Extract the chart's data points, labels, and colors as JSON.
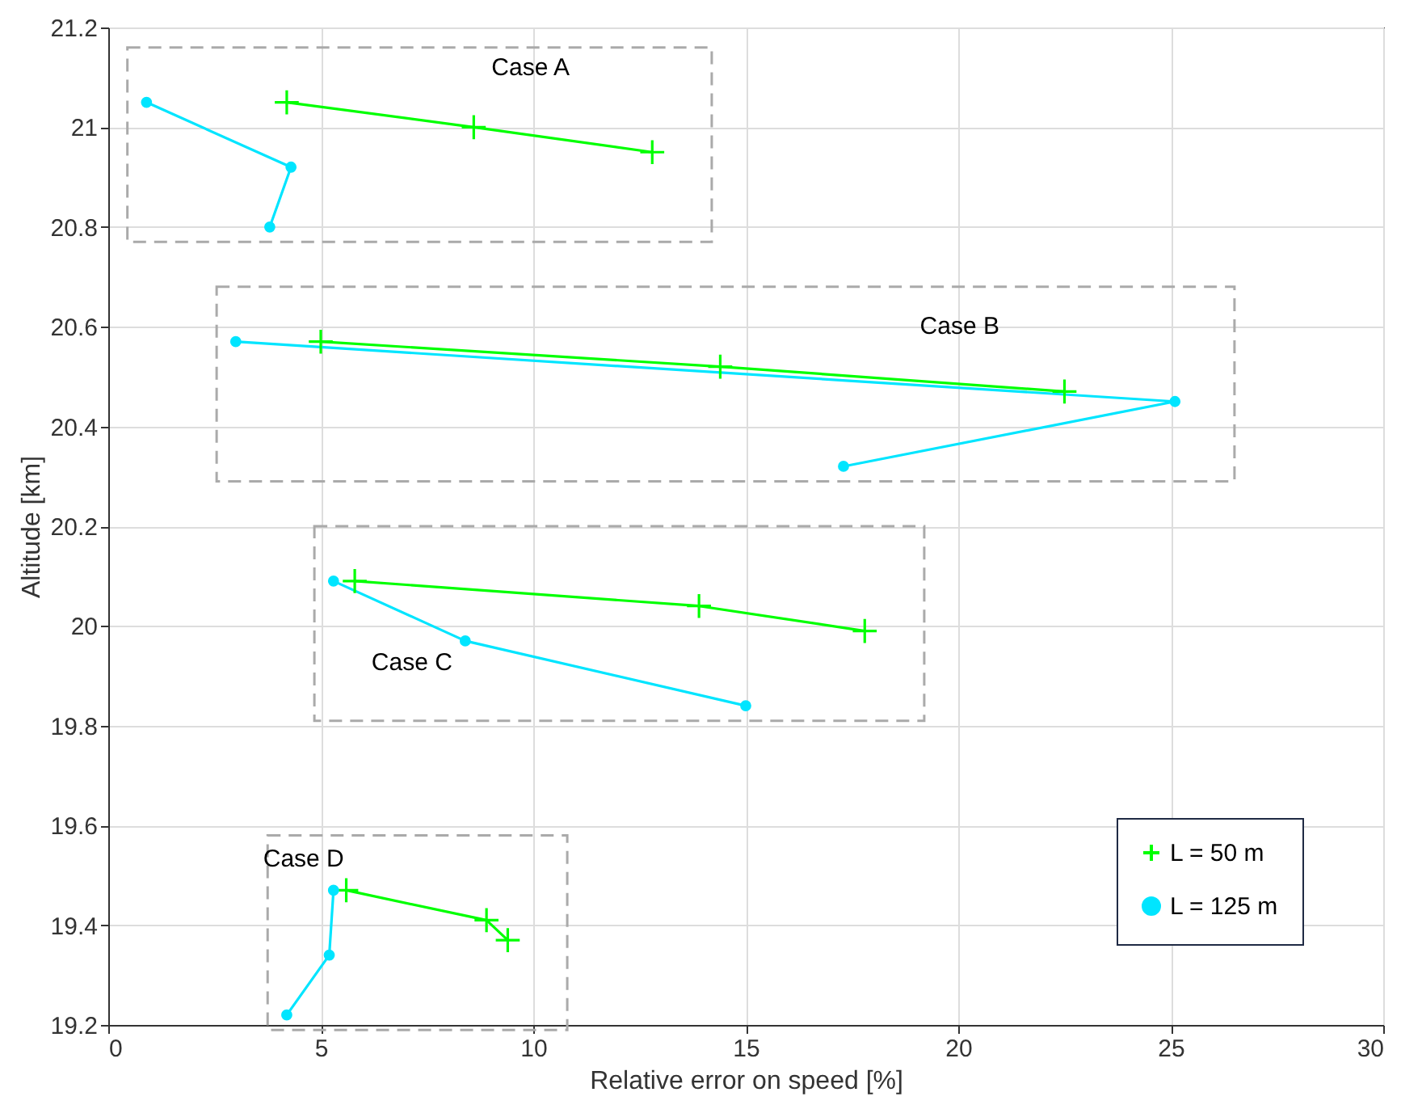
{
  "chart_data": {
    "type": "line",
    "xlabel": "Relative error on speed [%]",
    "ylabel": "Altitude [km]",
    "xlim": [
      0,
      30
    ],
    "xticks": [
      0,
      5,
      10,
      15,
      20,
      25,
      30
    ],
    "ylim": [
      19.2,
      21.2
    ],
    "yticks": [
      19.2,
      19.4,
      19.6,
      19.8,
      20,
      20.2,
      20.4,
      20.6,
      20.8,
      21,
      21.2
    ],
    "grid": true,
    "legend": "bottom right",
    "series": [
      {
        "name": "L = 50 m",
        "color": "#00ff00",
        "marker": "cross",
        "x": [
          4.2,
          8.6,
          12.8,
          null,
          5.0,
          14.4,
          22.5,
          null,
          5.8,
          13.9,
          17.8,
          null,
          5.6,
          8.9,
          9.4
        ],
        "values": [
          21.05,
          21.0,
          20.95,
          null,
          20.57,
          20.52,
          20.47,
          null,
          20.09,
          20.04,
          19.99,
          null,
          19.47,
          19.41,
          19.37
        ]
      },
      {
        "name": "L = 125 m",
        "color": "#00e5ff",
        "marker": "circle",
        "x": [
          0.9,
          4.3,
          3.8,
          null,
          3.0,
          25.1,
          17.3,
          null,
          5.3,
          8.4,
          15.0,
          null,
          5.3,
          5.2,
          4.2
        ],
        "values": [
          21.05,
          20.92,
          20.8,
          null,
          20.57,
          20.45,
          20.32,
          null,
          20.09,
          19.97,
          19.84,
          null,
          19.47,
          19.34,
          19.22
        ]
      }
    ],
    "annotations": [
      "Case A",
      "Case B",
      "Case C",
      "Case D"
    ]
  }
}
